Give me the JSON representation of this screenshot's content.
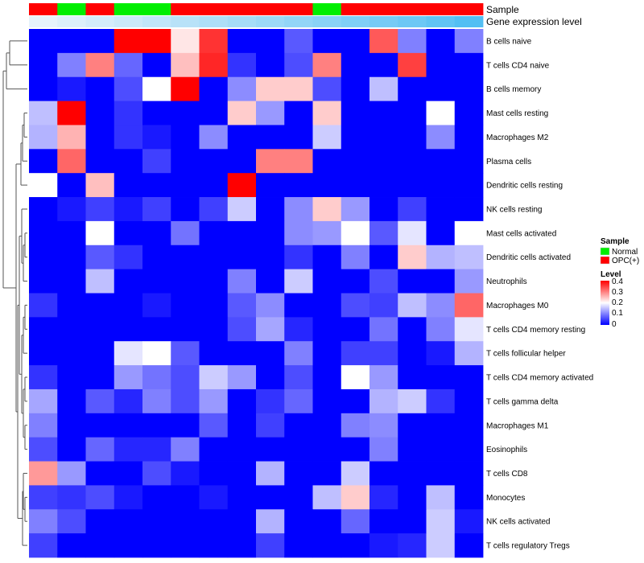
{
  "chart_data": {
    "type": "heatmap",
    "annotation_titles": {
      "sample": "Sample",
      "expression": "Gene expression level"
    },
    "sample_groups": [
      "OPC(+)",
      "Normal",
      "OPC(+)",
      "Normal",
      "Normal",
      "OPC(+)",
      "OPC(+)",
      "OPC(+)",
      "OPC(+)",
      "OPC(+)",
      "Normal",
      "OPC(+)",
      "OPC(+)",
      "OPC(+)",
      "OPC(+)",
      "OPC(+)"
    ],
    "gene_expression_levels": [
      0.02,
      0.08,
      0.14,
      0.2,
      0.26,
      0.32,
      0.38,
      0.44,
      0.5,
      0.56,
      0.62,
      0.68,
      0.74,
      0.8,
      0.88,
      0.96
    ],
    "rows": [
      "B cells naive",
      "T cells CD4 naive",
      "B cells memory",
      "Mast cells resting",
      "Macrophages M2",
      "Plasma cells",
      "Dendritic cells resting",
      "NK cells resting",
      "Mast cells activated",
      "Dendritic cells activated",
      "Neutrophils",
      "Macrophages M0",
      "T cells CD4 memory resting",
      "T cells follicular helper",
      "T cells CD4 memory activated",
      "T cells gamma delta",
      "Macrophages M1",
      "Eosinophils",
      "T cells CD8",
      "Monocytes",
      "NK cells activated",
      "T cells regulatory  Tregs"
    ],
    "values": [
      [
        0,
        0,
        0,
        0.4,
        0.4,
        0.22,
        0.36,
        0,
        0,
        0.07,
        0,
        0,
        0.33,
        0.1,
        0,
        0.1
      ],
      [
        0,
        0.1,
        0.3,
        0.08,
        0,
        0.25,
        0.37,
        0.04,
        0,
        0.06,
        0.3,
        0,
        0,
        0.35,
        0,
        0
      ],
      [
        0,
        0.02,
        0,
        0.06,
        0.2,
        0.4,
        0,
        0.11,
        0.24,
        0.24,
        0.06,
        0,
        0.15,
        0,
        0,
        0
      ],
      [
        0.15,
        0.4,
        0,
        0.04,
        0,
        0,
        0,
        0.24,
        0.12,
        0,
        0.24,
        0,
        0,
        0,
        0.2,
        0
      ],
      [
        0.14,
        0.26,
        0,
        0.04,
        0.02,
        0,
        0.11,
        0,
        0,
        0,
        0.16,
        0,
        0,
        0,
        0.11,
        0
      ],
      [
        0,
        0.32,
        0,
        0,
        0.05,
        0,
        0,
        0,
        0.3,
        0.3,
        0,
        0,
        0,
        0,
        0,
        0
      ],
      [
        0.2,
        0,
        0.25,
        0,
        0,
        0,
        0,
        0.4,
        0,
        0,
        0,
        0,
        0,
        0,
        0,
        0
      ],
      [
        0,
        0.02,
        0.05,
        0.02,
        0.05,
        0,
        0.05,
        0.16,
        0,
        0.11,
        0.24,
        0.12,
        0,
        0.05,
        0,
        0
      ],
      [
        0,
        0,
        0.2,
        0,
        0,
        0.09,
        0,
        0,
        0,
        0.11,
        0.12,
        0.2,
        0.07,
        0.18,
        0,
        0.2
      ],
      [
        0,
        0,
        0.07,
        0.04,
        0,
        0,
        0,
        0,
        0,
        0.04,
        0,
        0.1,
        0,
        0.24,
        0.14,
        0.15
      ],
      [
        0,
        0,
        0.15,
        0,
        0,
        0,
        0,
        0.1,
        0,
        0.16,
        0,
        0,
        0.06,
        0,
        0,
        0.12
      ],
      [
        0.04,
        0,
        0,
        0,
        0.02,
        0,
        0,
        0.07,
        0.11,
        0,
        0,
        0.06,
        0.05,
        0.15,
        0.11,
        0.32
      ],
      [
        0,
        0,
        0,
        0,
        0,
        0,
        0,
        0.06,
        0.13,
        0.03,
        0,
        0,
        0.09,
        0,
        0.1,
        0.18
      ],
      [
        0,
        0,
        0,
        0.18,
        0.2,
        0.07,
        0,
        0,
        0,
        0.1,
        0,
        0.05,
        0.05,
        0,
        0.02,
        0.14
      ],
      [
        0.04,
        0,
        0,
        0.12,
        0.09,
        0.06,
        0.16,
        0.12,
        0,
        0.06,
        0,
        0.2,
        0.12,
        0,
        0,
        0
      ],
      [
        0.13,
        0,
        0.07,
        0.03,
        0.1,
        0.06,
        0.12,
        0,
        0.04,
        0.08,
        0,
        0,
        0.14,
        0.16,
        0.04,
        0
      ],
      [
        0.1,
        0,
        0,
        0,
        0,
        0,
        0.07,
        0,
        0.05,
        0,
        0,
        0.1,
        0.11,
        0,
        0,
        0
      ],
      [
        0.06,
        0,
        0.08,
        0.03,
        0.03,
        0.1,
        0,
        0,
        0,
        0,
        0,
        0,
        0.1,
        0,
        0,
        0
      ],
      [
        0.28,
        0.12,
        0,
        0,
        0.06,
        0.02,
        0,
        0,
        0.14,
        0,
        0,
        0.16,
        0,
        0,
        0,
        0
      ],
      [
        0.05,
        0.04,
        0.06,
        0.02,
        0,
        0,
        0.02,
        0,
        0,
        0,
        0.15,
        0.24,
        0.03,
        0,
        0.15,
        0
      ],
      [
        0.1,
        0.06,
        0,
        0,
        0,
        0,
        0,
        0,
        0.14,
        0,
        0,
        0.08,
        0,
        0,
        0.16,
        0.02
      ],
      [
        0.05,
        0,
        0,
        0,
        0,
        0,
        0,
        0,
        0.05,
        0,
        0,
        0,
        0.02,
        0.03,
        0.16,
        0
      ]
    ],
    "legend": {
      "sample_title": "Sample",
      "sample_entries": [
        {
          "label": "Normal",
          "color": "#00ee00"
        },
        {
          "label": "OPC(+)",
          "color": "#ff0000"
        }
      ],
      "level_title": "Level",
      "level_ticks": [
        "0.4",
        "0.3",
        "0.2",
        "0.1",
        "0"
      ]
    },
    "colors": {
      "low": "#0000ff",
      "mid": "#ffffff",
      "high": "#ff0000",
      "normal": "#00ee00",
      "opc": "#ff0000",
      "expr_low": "#eaf4fb",
      "expr_high": "#4dbdf3"
    },
    "value_range": [
      0,
      0.4
    ]
  }
}
